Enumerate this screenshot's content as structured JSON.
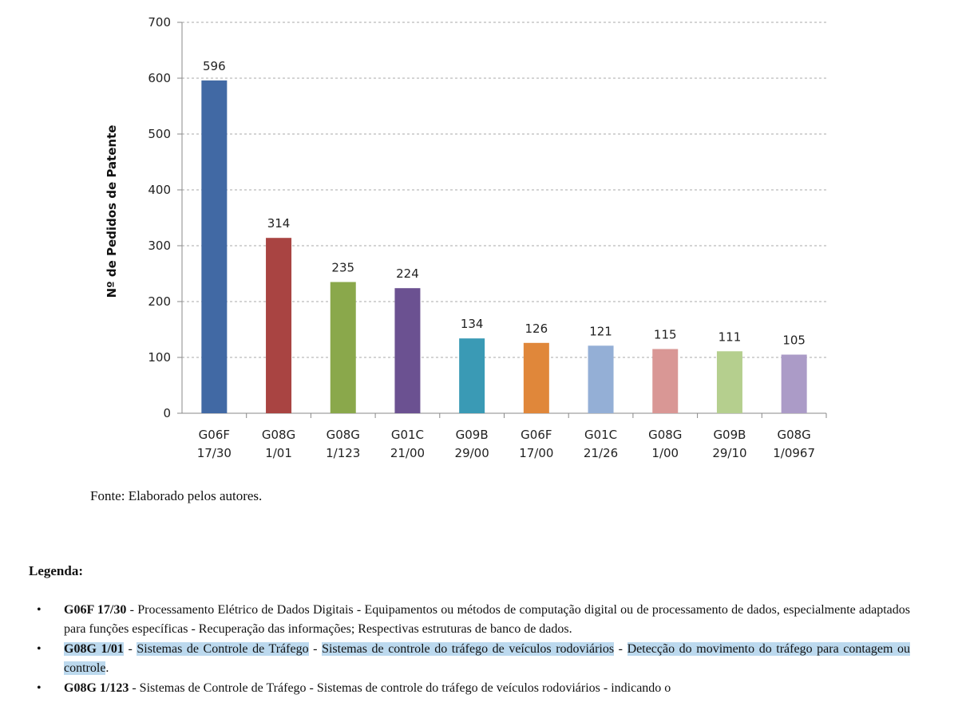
{
  "chart_data": {
    "type": "bar",
    "title": "",
    "xlabel": "",
    "ylabel": "Nº de Pedidos de Patente",
    "ylim": [
      0,
      700
    ],
    "yticks": [
      0,
      100,
      200,
      300,
      400,
      500,
      600,
      700
    ],
    "grid": true,
    "categories": [
      [
        "G06F",
        "17/30"
      ],
      [
        "G08G",
        "1/01"
      ],
      [
        "G08G",
        "1/123"
      ],
      [
        "G01C",
        "21/00"
      ],
      [
        "G09B",
        "29/00"
      ],
      [
        "G06F",
        "17/00"
      ],
      [
        "G01C",
        "21/26"
      ],
      [
        "G08G",
        "1/00"
      ],
      [
        "G09B",
        "29/10"
      ],
      [
        "G08G",
        "1/0967"
      ]
    ],
    "values": [
      596,
      314,
      235,
      224,
      134,
      126,
      121,
      115,
      111,
      105
    ],
    "colors": [
      "#4169a4",
      "#a94442",
      "#8aa84b",
      "#6b5191",
      "#3a9ab5",
      "#e0873a",
      "#94afd6",
      "#d99795",
      "#b5cf8e",
      "#ab9bc7"
    ]
  },
  "source": "Fonte: Elaborado pelos autores.",
  "legend": {
    "title": "Legenda:",
    "bullet": "•",
    "items": [
      {
        "code": "G06F 17/30",
        "sep1": " - ",
        "text": "Processamento Elétrico de Dados Digitais - Equipamentos ou métodos de computação digital ou de processamento de dados, especialmente adaptados para funções específicas - Recuperação das informações; Respectivas estruturas de banco de dados."
      },
      {
        "code": "G08G 1/01",
        "sep1": " - ",
        "part1": "Sistemas de Controle de Tráfego",
        "sep2": " - ",
        "part2a": "Sistemas de controle do ",
        "part2b": "tráfego de veículos rodoviários",
        "sep3": " - ",
        "part3": "Detecção do movimento do tráfego para contagem ou controle",
        "end": "."
      },
      {
        "code": "G08G 1/123",
        "sep1": " - ",
        "text": "Sistemas de Controle de Tráfego - Sistemas de controle do tráfego de veículos rodoviários - indicando o"
      }
    ]
  }
}
